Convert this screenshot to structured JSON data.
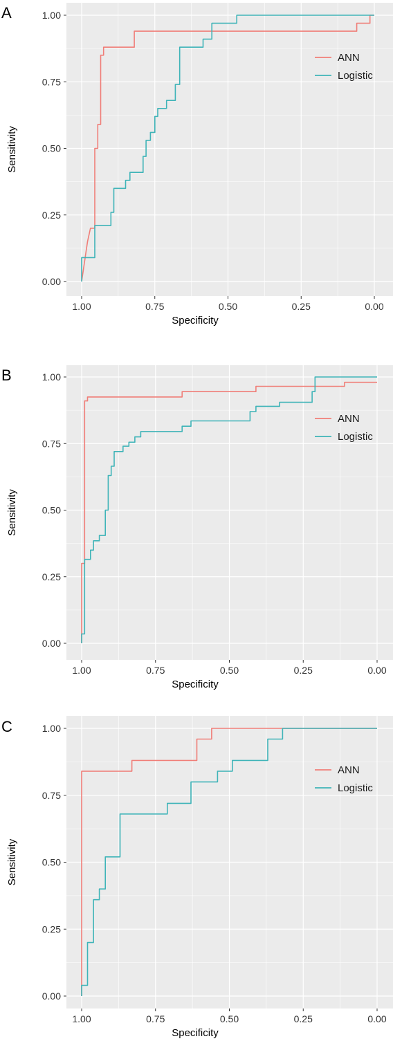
{
  "colors": {
    "ANN": "#f07e78",
    "Logistic": "#3fb4b8",
    "panel_bg": "#ebebeb",
    "grid": "#ffffff"
  },
  "chart_data": [
    {
      "type": "line",
      "panel": "A",
      "xlabel": "Specificity",
      "ylabel": "Sensitivity",
      "x_reversed": true,
      "xlim": [
        1.0,
        0.0
      ],
      "ylim": [
        0.0,
        1.0
      ],
      "x_ticks": [
        "1.00",
        "0.75",
        "0.50",
        "0.25",
        "0.00"
      ],
      "y_ticks": [
        "0.00",
        "0.25",
        "0.50",
        "0.75",
        "1.00"
      ],
      "grid": true,
      "legend_position": "right",
      "series": [
        {
          "name": "ANN",
          "color_key": "ANN",
          "points": [
            [
              1.0,
              0.0
            ],
            [
              0.98,
              0.15
            ],
            [
              0.97,
              0.2
            ],
            [
              0.955,
              0.2
            ],
            [
              0.955,
              0.5
            ],
            [
              0.945,
              0.5
            ],
            [
              0.945,
              0.59
            ],
            [
              0.935,
              0.59
            ],
            [
              0.935,
              0.85
            ],
            [
              0.925,
              0.85
            ],
            [
              0.925,
              0.88
            ],
            [
              0.82,
              0.88
            ],
            [
              0.82,
              0.94
            ],
            [
              0.06,
              0.94
            ],
            [
              0.06,
              0.97
            ],
            [
              0.015,
              0.97
            ],
            [
              0.015,
              1.0
            ],
            [
              0.0,
              1.0
            ]
          ]
        },
        {
          "name": "Logistic",
          "color_key": "Logistic",
          "points": [
            [
              1.0,
              0.0
            ],
            [
              1.0,
              0.09
            ],
            [
              0.955,
              0.09
            ],
            [
              0.955,
              0.21
            ],
            [
              0.9,
              0.21
            ],
            [
              0.9,
              0.26
            ],
            [
              0.89,
              0.26
            ],
            [
              0.89,
              0.35
            ],
            [
              0.85,
              0.35
            ],
            [
              0.85,
              0.38
            ],
            [
              0.835,
              0.38
            ],
            [
              0.835,
              0.41
            ],
            [
              0.79,
              0.41
            ],
            [
              0.79,
              0.47
            ],
            [
              0.78,
              0.47
            ],
            [
              0.78,
              0.53
            ],
            [
              0.765,
              0.53
            ],
            [
              0.765,
              0.56
            ],
            [
              0.75,
              0.56
            ],
            [
              0.75,
              0.62
            ],
            [
              0.74,
              0.62
            ],
            [
              0.74,
              0.65
            ],
            [
              0.71,
              0.65
            ],
            [
              0.71,
              0.68
            ],
            [
              0.68,
              0.68
            ],
            [
              0.68,
              0.74
            ],
            [
              0.665,
              0.74
            ],
            [
              0.665,
              0.88
            ],
            [
              0.585,
              0.88
            ],
            [
              0.585,
              0.91
            ],
            [
              0.555,
              0.91
            ],
            [
              0.555,
              0.97
            ],
            [
              0.47,
              0.97
            ],
            [
              0.47,
              1.0
            ],
            [
              0.0,
              1.0
            ]
          ]
        }
      ]
    },
    {
      "type": "line",
      "panel": "B",
      "xlabel": "Specificity",
      "ylabel": "Sensitivity",
      "x_reversed": true,
      "xlim": [
        1.0,
        0.0
      ],
      "ylim": [
        0.0,
        1.0
      ],
      "x_ticks": [
        "1.00",
        "0.75",
        "0.50",
        "0.25",
        "0.00"
      ],
      "y_ticks": [
        "0.00",
        "0.25",
        "0.50",
        "0.75",
        "1.00"
      ],
      "grid": true,
      "legend_position": "right",
      "series": [
        {
          "name": "ANN",
          "color_key": "ANN",
          "points": [
            [
              1.0,
              0.0
            ],
            [
              1.0,
              0.3
            ],
            [
              0.99,
              0.3
            ],
            [
              0.99,
              0.91
            ],
            [
              0.98,
              0.91
            ],
            [
              0.98,
              0.925
            ],
            [
              0.66,
              0.925
            ],
            [
              0.66,
              0.945
            ],
            [
              0.41,
              0.945
            ],
            [
              0.41,
              0.965
            ],
            [
              0.11,
              0.965
            ],
            [
              0.11,
              0.98
            ],
            [
              0.0,
              0.98
            ]
          ]
        },
        {
          "name": "Logistic",
          "color_key": "Logistic",
          "points": [
            [
              1.0,
              0.0
            ],
            [
              1.0,
              0.035
            ],
            [
              0.99,
              0.035
            ],
            [
              0.99,
              0.315
            ],
            [
              0.97,
              0.315
            ],
            [
              0.97,
              0.35
            ],
            [
              0.96,
              0.35
            ],
            [
              0.96,
              0.385
            ],
            [
              0.94,
              0.385
            ],
            [
              0.94,
              0.405
            ],
            [
              0.92,
              0.405
            ],
            [
              0.92,
              0.5
            ],
            [
              0.91,
              0.5
            ],
            [
              0.91,
              0.63
            ],
            [
              0.9,
              0.63
            ],
            [
              0.9,
              0.665
            ],
            [
              0.89,
              0.665
            ],
            [
              0.89,
              0.72
            ],
            [
              0.86,
              0.72
            ],
            [
              0.86,
              0.74
            ],
            [
              0.84,
              0.74
            ],
            [
              0.84,
              0.755
            ],
            [
              0.82,
              0.755
            ],
            [
              0.82,
              0.775
            ],
            [
              0.8,
              0.775
            ],
            [
              0.8,
              0.795
            ],
            [
              0.66,
              0.795
            ],
            [
              0.66,
              0.815
            ],
            [
              0.63,
              0.815
            ],
            [
              0.63,
              0.835
            ],
            [
              0.43,
              0.835
            ],
            [
              0.43,
              0.87
            ],
            [
              0.41,
              0.87
            ],
            [
              0.41,
              0.89
            ],
            [
              0.33,
              0.89
            ],
            [
              0.33,
              0.905
            ],
            [
              0.22,
              0.905
            ],
            [
              0.22,
              0.945
            ],
            [
              0.21,
              0.945
            ],
            [
              0.21,
              1.0
            ],
            [
              0.0,
              1.0
            ]
          ]
        }
      ]
    },
    {
      "type": "line",
      "panel": "C",
      "xlabel": "Specificity",
      "ylabel": "Sensitivity",
      "x_reversed": true,
      "xlim": [
        1.0,
        0.0
      ],
      "ylim": [
        0.0,
        1.0
      ],
      "x_ticks": [
        "1.00",
        "0.75",
        "0.50",
        "0.25",
        "0.00"
      ],
      "y_ticks": [
        "0.00",
        "0.25",
        "0.50",
        "0.75",
        "1.00"
      ],
      "grid": true,
      "legend_position": "right",
      "series": [
        {
          "name": "ANN",
          "color_key": "ANN",
          "points": [
            [
              1.0,
              0.0
            ],
            [
              1.0,
              0.84
            ],
            [
              0.83,
              0.84
            ],
            [
              0.83,
              0.88
            ],
            [
              0.61,
              0.88
            ],
            [
              0.61,
              0.96
            ],
            [
              0.56,
              0.96
            ],
            [
              0.56,
              1.0
            ],
            [
              0.0,
              1.0
            ]
          ]
        },
        {
          "name": "Logistic",
          "color_key": "Logistic",
          "points": [
            [
              1.0,
              0.0
            ],
            [
              1.0,
              0.04
            ],
            [
              0.98,
              0.04
            ],
            [
              0.98,
              0.2
            ],
            [
              0.96,
              0.2
            ],
            [
              0.96,
              0.36
            ],
            [
              0.94,
              0.36
            ],
            [
              0.94,
              0.4
            ],
            [
              0.92,
              0.4
            ],
            [
              0.92,
              0.52
            ],
            [
              0.87,
              0.52
            ],
            [
              0.87,
              0.68
            ],
            [
              0.71,
              0.68
            ],
            [
              0.71,
              0.72
            ],
            [
              0.63,
              0.72
            ],
            [
              0.63,
              0.8
            ],
            [
              0.54,
              0.8
            ],
            [
              0.54,
              0.84
            ],
            [
              0.49,
              0.84
            ],
            [
              0.49,
              0.88
            ],
            [
              0.37,
              0.88
            ],
            [
              0.37,
              0.96
            ],
            [
              0.32,
              0.96
            ],
            [
              0.32,
              1.0
            ],
            [
              0.0,
              1.0
            ]
          ]
        }
      ]
    }
  ]
}
